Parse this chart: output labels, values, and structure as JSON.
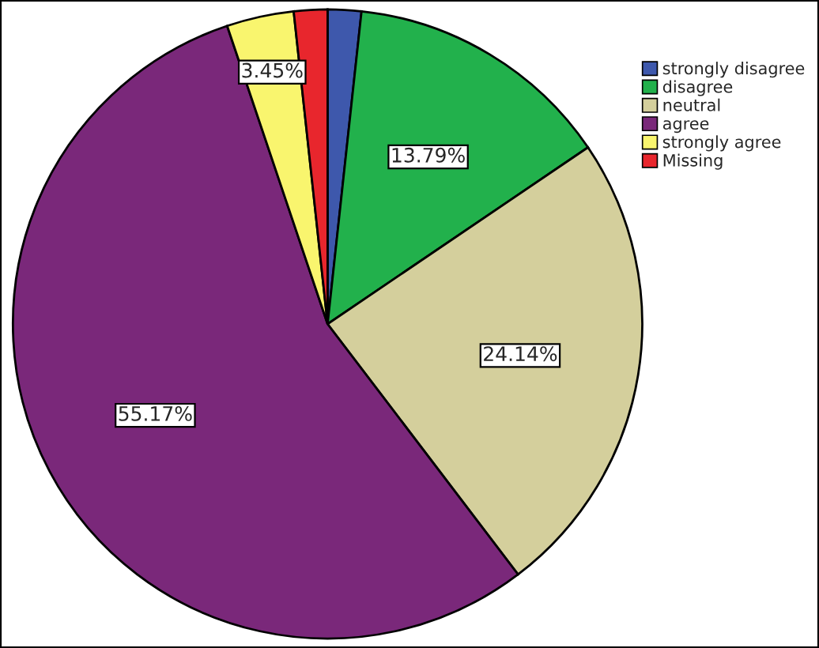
{
  "chart_data": {
    "type": "pie",
    "categories": [
      "strongly disagree",
      "disagree",
      "neutral",
      "agree",
      "strongly agree",
      "Missing"
    ],
    "values": [
      1.72,
      13.79,
      24.14,
      55.17,
      3.45,
      1.72
    ],
    "colors": [
      "#3e58ac",
      "#22b14c",
      "#d4cf9c",
      "#7a287a",
      "#f9f56e",
      "#e8262d"
    ],
    "value_labels": [
      null,
      "13.79%",
      "24.14%",
      "55.17%",
      "3.45%",
      null
    ],
    "legend": "top right"
  }
}
